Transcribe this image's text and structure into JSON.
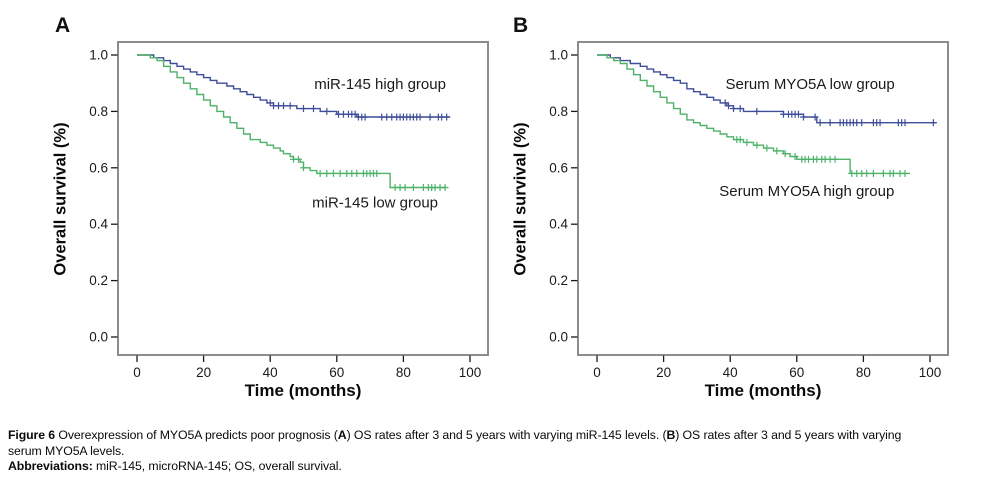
{
  "colors": {
    "frame": "#8c8c8c",
    "axis": "#1a1a1a",
    "curve_blue": "#3f4e99",
    "curve_green": "#4fb269"
  },
  "caption": {
    "fig_label": "Figure 6",
    "body_1": " Overexpression of MYO5A predicts poor prognosis (",
    "panel_a": "A",
    "body_2": ") OS rates after 3 and 5 years with varying miR-145 levels. (",
    "panel_b": "B",
    "body_3": ") OS rates after 3 and 5 years with varying",
    "body_4": "serum MYO5A levels.",
    "abbr_label": "Abbreviations:",
    "abbr_body": " miR-145, microRNA-145; OS, overall survival."
  },
  "chart_data": [
    {
      "type": "line",
      "subtype": "kaplan-meier-step",
      "panel": "A",
      "xlabel": "Time (months)",
      "ylabel": "Overall survival (%)",
      "xticks": [
        0,
        20,
        40,
        60,
        80,
        100
      ],
      "yticks": [
        0.0,
        0.2,
        0.4,
        0.6,
        0.8,
        1.0
      ],
      "xlim": [
        -6,
        105
      ],
      "ylim": [
        -0.06,
        1.05
      ],
      "grid": false,
      "legend_position": "inline-labels",
      "series": [
        {
          "name": "miR-145 high group",
          "color": "#3f4e99",
          "start": [
            0,
            1.0
          ],
          "end": 94,
          "label_pos": {
            "t": 73,
            "s": 0.88
          },
          "drops": [
            [
              5,
              0.99
            ],
            [
              8,
              0.98
            ],
            [
              10,
              0.97
            ],
            [
              12,
              0.96
            ],
            [
              14,
              0.95
            ],
            [
              16,
              0.94
            ],
            [
              18,
              0.93
            ],
            [
              20,
              0.92
            ],
            [
              22,
              0.91
            ],
            [
              24,
              0.9
            ],
            [
              27,
              0.89
            ],
            [
              29,
              0.88
            ],
            [
              31,
              0.87
            ],
            [
              33,
              0.86
            ],
            [
              35,
              0.85
            ],
            [
              37,
              0.84
            ],
            [
              39,
              0.83
            ],
            [
              41,
              0.82
            ],
            [
              48,
              0.81
            ],
            [
              55,
              0.8
            ],
            [
              60,
              0.79
            ],
            [
              66,
              0.78
            ]
          ],
          "censors": [
            40,
            41,
            42.5,
            44,
            46,
            50,
            53,
            57,
            60.5,
            62,
            63.5,
            64.5,
            65.5,
            66.5,
            67.5,
            68.5,
            73.5,
            75,
            76.5,
            78,
            79,
            80,
            81,
            82,
            83,
            84,
            85,
            88,
            90.5,
            91.5,
            93
          ]
        },
        {
          "name": "miR-145 low group",
          "color": "#4fb269",
          "start": [
            0,
            1.0
          ],
          "end": 93,
          "label_pos": {
            "t": 71.5,
            "s": 0.46
          },
          "drops": [
            [
              4,
              0.99
            ],
            [
              6,
              0.98
            ],
            [
              8,
              0.96
            ],
            [
              10,
              0.94
            ],
            [
              12,
              0.92
            ],
            [
              14,
              0.9
            ],
            [
              16,
              0.88
            ],
            [
              18,
              0.86
            ],
            [
              20,
              0.84
            ],
            [
              22,
              0.82
            ],
            [
              24,
              0.8
            ],
            [
              26,
              0.78
            ],
            [
              28,
              0.76
            ],
            [
              30,
              0.74
            ],
            [
              32,
              0.72
            ],
            [
              34,
              0.7
            ],
            [
              37,
              0.69
            ],
            [
              39,
              0.68
            ],
            [
              41,
              0.67
            ],
            [
              43,
              0.66
            ],
            [
              44,
              0.65
            ],
            [
              46,
              0.64
            ],
            [
              47,
              0.63
            ],
            [
              49,
              0.62
            ],
            [
              50,
              0.6
            ],
            [
              52,
              0.59
            ],
            [
              54,
              0.58
            ],
            [
              76,
              0.53
            ]
          ],
          "censors": [
            47,
            48.5,
            50,
            55,
            57,
            59,
            61,
            63,
            64.5,
            66,
            68,
            69,
            70,
            71,
            72,
            77.5,
            79,
            80.5,
            83,
            86,
            87.5,
            88.5,
            89.5,
            91,
            92.5
          ]
        }
      ]
    },
    {
      "type": "line",
      "subtype": "kaplan-meier-step",
      "panel": "B",
      "xlabel": "Time (months)",
      "ylabel": "Overall survival (%)",
      "xticks": [
        0,
        20,
        40,
        60,
        80,
        100
      ],
      "yticks": [
        0.0,
        0.2,
        0.4,
        0.6,
        0.8,
        1.0
      ],
      "xlim": [
        -6,
        105
      ],
      "ylim": [
        -0.06,
        1.05
      ],
      "grid": false,
      "legend_position": "inline-labels",
      "series": [
        {
          "name": "Serum MYO5A low group",
          "color": "#3f4e99",
          "start": [
            0,
            1.0
          ],
          "end": 102,
          "label_pos": {
            "t": 64,
            "s": 0.88
          },
          "drops": [
            [
              4,
              0.99
            ],
            [
              7,
              0.98
            ],
            [
              10,
              0.97
            ],
            [
              13,
              0.96
            ],
            [
              15,
              0.95
            ],
            [
              17,
              0.94
            ],
            [
              19,
              0.93
            ],
            [
              21,
              0.92
            ],
            [
              23,
              0.91
            ],
            [
              25,
              0.9
            ],
            [
              27,
              0.88
            ],
            [
              29,
              0.87
            ],
            [
              31,
              0.86
            ],
            [
              33,
              0.85
            ],
            [
              35,
              0.84
            ],
            [
              37,
              0.83
            ],
            [
              39,
              0.82
            ],
            [
              41,
              0.81
            ],
            [
              44,
              0.8
            ],
            [
              56,
              0.79
            ],
            [
              62,
              0.78
            ],
            [
              66,
              0.76
            ]
          ],
          "censors": [
            38.5,
            39.5,
            41,
            43,
            48,
            56,
            57.5,
            58.5,
            59.5,
            60.5,
            62,
            65.5,
            67,
            70,
            73,
            74,
            75,
            76,
            77,
            78,
            79.5,
            83,
            84,
            85,
            90.5,
            91.5,
            92.5,
            101
          ]
        },
        {
          "name": "Serum MYO5A high group",
          "color": "#4fb269",
          "start": [
            0,
            1.0
          ],
          "end": 94,
          "label_pos": {
            "t": 63,
            "s": 0.5
          },
          "drops": [
            [
              3,
              0.99
            ],
            [
              5,
              0.98
            ],
            [
              7,
              0.97
            ],
            [
              9,
              0.95
            ],
            [
              11,
              0.93
            ],
            [
              13,
              0.91
            ],
            [
              15,
              0.89
            ],
            [
              17,
              0.87
            ],
            [
              19,
              0.85
            ],
            [
              21,
              0.83
            ],
            [
              23,
              0.81
            ],
            [
              25,
              0.79
            ],
            [
              27,
              0.77
            ],
            [
              29,
              0.76
            ],
            [
              31,
              0.75
            ],
            [
              33,
              0.74
            ],
            [
              35,
              0.73
            ],
            [
              37,
              0.72
            ],
            [
              39,
              0.71
            ],
            [
              41,
              0.7
            ],
            [
              44,
              0.69
            ],
            [
              47,
              0.68
            ],
            [
              50,
              0.67
            ],
            [
              53,
              0.66
            ],
            [
              56,
              0.65
            ],
            [
              58,
              0.64
            ],
            [
              60,
              0.63
            ],
            [
              76,
              0.58
            ]
          ],
          "censors": [
            42,
            43,
            45,
            48,
            51,
            54,
            56.5,
            59.5,
            61.5,
            62.5,
            63.5,
            65,
            66,
            67.5,
            68.5,
            70,
            71.5,
            76.5,
            78,
            79.5,
            81,
            83,
            86,
            88,
            89,
            91,
            92.5
          ]
        }
      ]
    }
  ]
}
